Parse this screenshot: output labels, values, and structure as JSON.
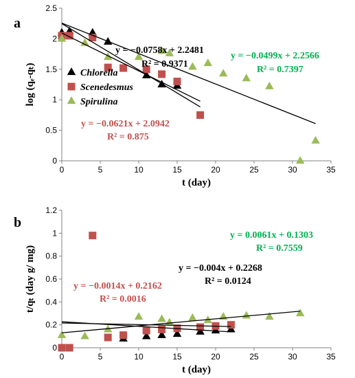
{
  "colors": {
    "chlorella": "#000000",
    "scenedesmus": "#c0504d",
    "spirulina": "#9bbb59",
    "eq_green": "#00b050",
    "eq_red": "#c0504d",
    "eq_black": "#000000"
  },
  "chart_data": [
    {
      "type": "scatter",
      "panel_label": "a",
      "xlabel": "t (day)",
      "ylabel": "log (qₑ-qₜ)",
      "xlim": [
        0,
        35
      ],
      "ylim": [
        0,
        2.5
      ],
      "xticks": [
        "0",
        "5",
        "10",
        "15",
        "20",
        "25",
        "30",
        "35"
      ],
      "yticks": [
        "0",
        "0.5",
        "1",
        "1.5",
        "2",
        "2.5"
      ],
      "legend_placement": "left",
      "series": [
        {
          "name": "Chlorella",
          "marker": "triangle",
          "color_key": "chlorella",
          "x": [
            0,
            1,
            4,
            6,
            11,
            13,
            15
          ],
          "y": [
            2.1,
            2.12,
            2.1,
            1.95,
            1.4,
            1.25,
            1.23
          ],
          "fit": {
            "slope": -0.0758,
            "intercept": 2.2481,
            "x_range": [
              0,
              18
            ]
          }
        },
        {
          "name": "Scenedesmus",
          "marker": "square",
          "color_key": "scenedesmus",
          "x": [
            0,
            1,
            4,
            6,
            8,
            11,
            13,
            15,
            18
          ],
          "y": [
            2.05,
            2.05,
            2.02,
            1.53,
            1.52,
            1.5,
            1.42,
            1.3,
            0.75
          ],
          "fit": {
            "slope": -0.0621,
            "intercept": 2.0942,
            "x_range": [
              0,
              18
            ]
          }
        },
        {
          "name": "Spirulina",
          "marker": "triangle",
          "color_key": "spirulina",
          "x": [
            0,
            3,
            6,
            10,
            13,
            14,
            17,
            19,
            21,
            24,
            27,
            31,
            33
          ],
          "y": [
            2.0,
            1.93,
            1.7,
            1.7,
            1.8,
            1.76,
            1.54,
            1.6,
            1.43,
            1.35,
            1.22,
            0.0,
            0.33
          ],
          "fit": {
            "slope": -0.0499,
            "intercept": 2.2566,
            "x_range": [
              0,
              33
            ]
          }
        }
      ],
      "annotations": [
        {
          "line1": "y = −0.0758x + 2.2481",
          "line2": "R² = 0.9371",
          "color_key": "eq_black"
        },
        {
          "line1": "y = −0.0499x + 2.2566",
          "line2": "R² = 0.7397",
          "color_key": "eq_green"
        },
        {
          "line1": "y = −0.0621x + 2.0942",
          "line2": "R² = 0.875",
          "color_key": "eq_red"
        }
      ]
    },
    {
      "type": "scatter",
      "panel_label": "b",
      "xlabel": "t (day)",
      "ylabel": "t/qₜ (day g/ mg)",
      "xlim": [
        0,
        35
      ],
      "ylim": [
        0,
        1.2
      ],
      "xticks": [
        "0",
        "5",
        "10",
        "15",
        "20",
        "25",
        "30",
        "35"
      ],
      "yticks": [
        "0",
        "0.2",
        "0.4",
        "0.6",
        "0.8",
        "1",
        "1.2"
      ],
      "series": [
        {
          "name": "Chlorella",
          "marker": "triangle",
          "color_key": "chlorella",
          "x": [
            8,
            11,
            13,
            15,
            18,
            20,
            22
          ],
          "y": [
            0.08,
            0.1,
            0.11,
            0.12,
            0.14,
            0.15,
            0.16
          ],
          "fit": {
            "slope": -0.004,
            "intercept": 0.2268,
            "x_range": [
              0,
              22
            ]
          }
        },
        {
          "name": "Scenedesmus",
          "marker": "square",
          "color_key": "scenedesmus",
          "x": [
            0,
            1,
            4,
            6,
            8,
            11,
            13,
            15,
            18,
            20,
            22
          ],
          "y": [
            0.0,
            0.0,
            0.98,
            0.09,
            0.11,
            0.15,
            0.16,
            0.17,
            0.18,
            0.19,
            0.2
          ],
          "fit": {
            "slope": -0.0014,
            "intercept": 0.2162,
            "x_range": [
              0,
              22
            ]
          }
        },
        {
          "name": "Spirulina",
          "marker": "triangle",
          "color_key": "spirulina",
          "x": [
            0,
            3,
            6,
            10,
            13,
            14,
            17,
            19,
            21,
            24,
            27,
            31
          ],
          "y": [
            0.11,
            0.1,
            0.16,
            0.27,
            0.25,
            0.22,
            0.26,
            0.24,
            0.27,
            0.28,
            0.27,
            0.3
          ],
          "fit": {
            "slope": 0.0061,
            "intercept": 0.1303,
            "x_range": [
              0,
              31
            ]
          }
        }
      ],
      "annotations": [
        {
          "line1": "y = 0.0061x + 0.1303",
          "line2": "R² = 0.7559",
          "color_key": "eq_green"
        },
        {
          "line1": "y = −0.004x + 0.2268",
          "line2": "R² = 0.0124",
          "color_key": "eq_black"
        },
        {
          "line1": "y = −0.0014x + 0.2162",
          "line2": "R² = 0.0016",
          "color_key": "eq_red"
        }
      ]
    }
  ]
}
